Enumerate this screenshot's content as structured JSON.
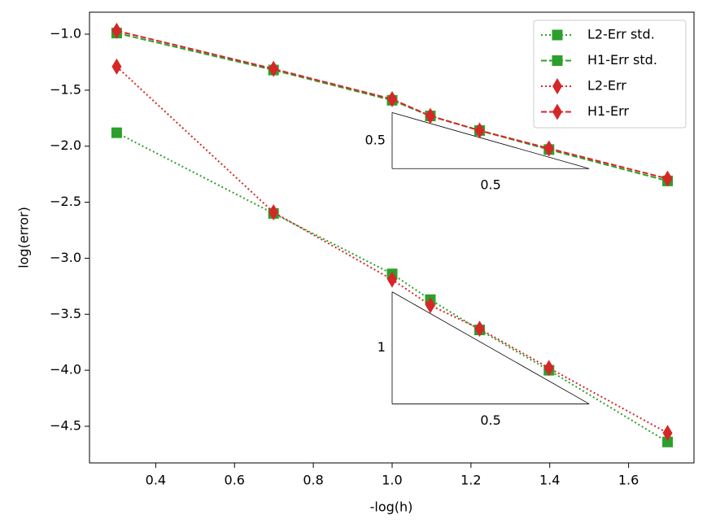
{
  "chart_data": {
    "type": "line",
    "xlabel": "-log(h)",
    "ylabel": "log(error)",
    "x": [
      0.301,
      0.699,
      1.0,
      1.097,
      1.222,
      1.398,
      1.699
    ],
    "series": [
      {
        "name": "L2-Err std.",
        "color": "#2ca02c",
        "linestyle": "dotted",
        "marker": "square",
        "values": [
          -1.88,
          -2.6,
          -3.14,
          -3.37,
          -3.64,
          -4.0,
          -4.64
        ]
      },
      {
        "name": "H1-Err std.",
        "color": "#2ca02c",
        "linestyle": "dashed",
        "marker": "square",
        "values": [
          -0.99,
          -1.32,
          -1.59,
          -1.73,
          -1.86,
          -2.03,
          -2.31
        ]
      },
      {
        "name": "L2-Err",
        "color": "#d62728",
        "linestyle": "dotted",
        "marker": "diamond",
        "values": [
          -1.29,
          -2.59,
          -3.19,
          -3.42,
          -3.63,
          -3.98,
          -4.56
        ]
      },
      {
        "name": "H1-Err",
        "color": "#d62728",
        "linestyle": "dashed",
        "marker": "diamond",
        "values": [
          -0.97,
          -1.31,
          -1.58,
          -1.73,
          -1.86,
          -2.02,
          -2.29
        ]
      }
    ],
    "triangles": [
      {
        "x": [
          1.0,
          1.5
        ],
        "y": [
          -1.7,
          -2.2
        ],
        "height_label": "0.5",
        "width_label": "0.5"
      },
      {
        "x": [
          1.0,
          1.5
        ],
        "y": [
          -3.3,
          -4.3
        ],
        "height_label": "1",
        "width_label": "0.5"
      }
    ],
    "xlim": [
      0.232,
      1.766
    ],
    "ylim": [
      -4.827,
      -0.804
    ],
    "xticks": [
      0.4,
      0.6,
      0.8,
      {
        "value": 1.0,
        "label": "1.0"
      },
      1.2,
      1.4,
      1.6
    ],
    "yticks": [
      {
        "value": -1.0,
        "label": "−1.0"
      },
      {
        "value": -1.5,
        "label": "−1.5"
      },
      {
        "value": -2.0,
        "label": "−2.0"
      },
      {
        "value": -2.5,
        "label": "−2.5"
      },
      {
        "value": -3.0,
        "label": "−3.0"
      },
      {
        "value": -3.5,
        "label": "−3.5"
      },
      {
        "value": -4.0,
        "label": "−4.0"
      },
      {
        "value": -4.5,
        "label": "−4.5"
      }
    ],
    "legend": "upper right"
  }
}
